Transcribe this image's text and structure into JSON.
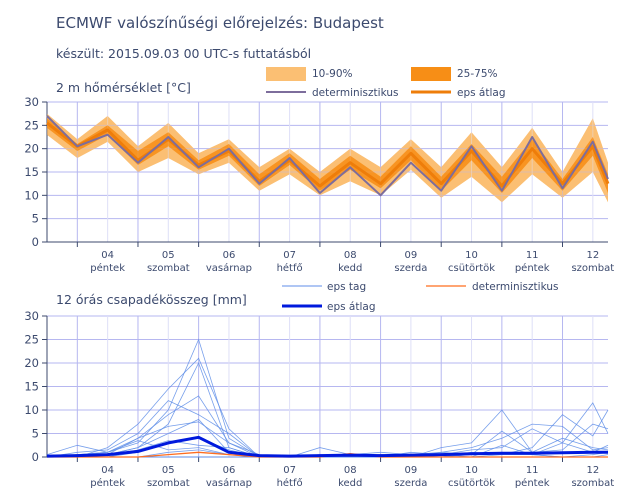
{
  "header": {
    "title": "ECMWF valószínűségi előrejelzés: Budapest",
    "subtitle": "készült: 2015.09.03 00 UTC-s futtatásból"
  },
  "colors": {
    "band_10_90": "#fbbf73",
    "band_25_75": "#f78e16",
    "deterministic_temp": "#7d6d9c",
    "eps_mean_temp": "#ee7d0a",
    "eps_members": "#5f8ee8",
    "deterministic_precip": "#ff6d1f",
    "eps_mean_precip": "#0019dd",
    "grid_major": "#b6b7f0",
    "grid_minor": "#dedff7",
    "axis": "#3c4a6e"
  },
  "x_axis": {
    "day_numbers": [
      "04",
      "05",
      "06",
      "07",
      "08",
      "09",
      "10",
      "11",
      "12"
    ],
    "day_names": [
      "péntek",
      "szombat",
      "vasárnap",
      "hétfő",
      "kedd",
      "szerda",
      "csütörtök",
      "péntek",
      "szombat"
    ],
    "range": [
      0,
      18.5
    ]
  },
  "chart_data": [
    {
      "type": "area",
      "title": "2 m hőmérséklet [°C]",
      "ylim": [
        0,
        30
      ],
      "yticks": [
        0,
        5,
        10,
        15,
        20,
        25,
        30
      ],
      "grid": true,
      "legend_placement": "top-right",
      "legend": {
        "band_10_90": "10-90%",
        "band_25_75": "25-75%",
        "deterministic": "determinisztikus",
        "eps_mean": "eps átlag"
      },
      "x": [
        0,
        1,
        2,
        3,
        4,
        5,
        6,
        7,
        8,
        9,
        10,
        11,
        12,
        13,
        14,
        15,
        16,
        17,
        18,
        18.5
      ],
      "p10": [
        23,
        18,
        21.5,
        15,
        18,
        14.5,
        17,
        11,
        14.5,
        10,
        13,
        10,
        15.5,
        9.5,
        14,
        8.5,
        14.5,
        9.5,
        15,
        8.5
      ],
      "p90": [
        27.5,
        22,
        27,
        20.5,
        25.5,
        19,
        22,
        16,
        20,
        15,
        20,
        16,
        22,
        16,
        23.5,
        16,
        24.5,
        15,
        26.5,
        17
      ],
      "p25": [
        24.5,
        19.5,
        23,
        16.5,
        20.5,
        15.5,
        18.5,
        12,
        16.5,
        11,
        15.5,
        11.5,
        17.5,
        11,
        17.5,
        10.5,
        18,
        11,
        18.5,
        10.5
      ],
      "p75": [
        26.5,
        21,
        25,
        19.5,
        23.5,
        17.5,
        21,
        14.5,
        19,
        13.5,
        18.5,
        14,
        20.5,
        14,
        21,
        14,
        22,
        13.5,
        22.5,
        14.5
      ],
      "deterministic": [
        27,
        20.5,
        23,
        17,
        22.5,
        16,
        20,
        12.5,
        18,
        10.5,
        16,
        10,
        17,
        11,
        20.5,
        11,
        22.5,
        11.5,
        21.5,
        13.5
      ],
      "eps_mean": [
        25.5,
        20.5,
        24,
        17.5,
        22,
        16.5,
        19.5,
        13,
        17.5,
        12,
        17,
        12.5,
        19,
        12.5,
        19.5,
        12,
        20,
        12.5,
        20.5,
        12.5
      ]
    },
    {
      "type": "line",
      "title": "12 órás csapadékösszeg [mm]",
      "ylim": [
        0,
        30
      ],
      "yticks": [
        0,
        5,
        10,
        15,
        20,
        25,
        30
      ],
      "grid": true,
      "legend_placement": "top-right",
      "legend": {
        "eps_members": "eps tag",
        "deterministic": "determinisztikus",
        "eps_mean": "eps átlag"
      },
      "x": [
        0,
        1,
        2,
        3,
        4,
        5,
        6,
        7,
        8,
        9,
        10,
        11,
        12,
        13,
        14,
        15,
        16,
        17,
        18,
        18.5
      ],
      "eps_mean": [
        0.2,
        0.3,
        0.5,
        1.2,
        3,
        4.2,
        1,
        0.3,
        0.2,
        0.3,
        0.4,
        0.3,
        0.4,
        0.5,
        0.7,
        0.8,
        0.8,
        0.9,
        1,
        1
      ],
      "deterministic": [
        0,
        0,
        0,
        0,
        0.5,
        1,
        0.5,
        0,
        0,
        0,
        0.7,
        0,
        0,
        0,
        0,
        0,
        0,
        0,
        0,
        0
      ],
      "eps_members": [
        [
          0,
          0.5,
          1,
          3,
          10,
          25,
          4,
          0,
          0,
          0,
          0,
          0,
          0,
          0,
          0.5,
          1,
          0.5,
          0,
          0.5,
          1
        ],
        [
          0,
          0.3,
          0.5,
          2,
          7,
          20,
          2,
          0,
          0,
          0,
          0,
          0,
          0,
          0,
          1,
          0.5,
          0.5,
          0,
          0,
          0.5
        ],
        [
          0,
          0,
          2,
          7,
          14.5,
          21,
          6,
          0,
          0,
          0,
          0,
          0,
          0,
          0,
          0,
          0,
          0,
          0,
          0,
          0
        ],
        [
          0,
          0,
          0.5,
          4,
          9,
          13,
          3,
          0.5,
          0,
          0,
          0,
          0,
          0,
          0,
          0,
          0,
          0,
          0,
          0,
          0
        ],
        [
          0,
          1,
          1.5,
          5,
          12,
          9,
          5,
          0,
          0,
          0,
          0,
          0,
          1,
          0.5,
          0,
          0,
          0,
          0,
          0,
          0
        ],
        [
          0,
          0.5,
          1,
          4,
          6.5,
          7.5,
          3,
          0,
          0,
          0,
          0,
          0,
          0,
          0,
          0,
          0,
          0,
          0,
          0,
          0
        ],
        [
          0,
          0,
          0.5,
          2,
          5,
          8,
          1,
          0,
          0,
          0,
          0,
          0,
          0,
          0,
          0,
          0,
          0,
          0,
          0,
          0
        ],
        [
          0,
          0,
          0,
          1,
          3,
          4,
          1.5,
          0,
          0,
          0,
          0,
          0,
          0,
          0,
          0,
          0,
          0,
          0,
          0,
          0
        ],
        [
          0.5,
          2.5,
          1,
          3.5,
          1.5,
          2,
          0.5,
          0,
          0,
          0,
          0,
          0,
          0,
          0,
          0,
          0,
          0,
          0,
          0,
          0
        ],
        [
          0,
          0,
          0,
          1.5,
          3.5,
          2.5,
          2,
          0,
          0,
          0,
          0,
          0,
          0,
          0,
          0,
          0,
          0,
          0,
          0,
          0
        ],
        [
          0,
          0,
          0,
          0,
          1,
          1.5,
          0.5,
          0,
          0,
          0.5,
          0,
          0,
          0,
          0,
          0,
          0,
          0,
          0,
          0,
          0
        ],
        [
          0,
          0,
          0,
          0,
          0,
          0,
          0,
          0,
          0,
          2,
          0.5,
          0,
          0,
          0,
          0,
          0,
          0,
          0,
          0,
          0
        ],
        [
          0,
          0,
          0,
          0,
          0,
          0,
          0,
          0,
          0,
          0,
          0,
          0,
          0,
          2,
          3,
          10,
          1,
          4,
          2,
          1.5
        ],
        [
          0,
          0,
          0,
          0,
          0,
          0,
          0,
          0,
          0,
          0,
          0,
          0,
          0,
          1,
          2,
          4,
          7,
          6.5,
          1.5,
          2
        ],
        [
          0,
          0,
          0,
          0,
          0,
          0,
          0,
          0,
          0,
          0,
          0,
          0.5,
          0,
          0.5,
          1.5,
          2,
          6,
          3,
          11.5,
          5
        ],
        [
          0,
          0,
          0,
          0,
          0,
          0,
          0,
          0,
          0,
          0,
          0,
          0,
          0.5,
          0,
          0,
          0.5,
          2,
          9,
          4.5,
          10
        ],
        [
          0,
          0,
          0,
          0,
          0,
          0,
          0,
          0,
          0,
          0,
          0.5,
          1,
          0.5,
          1,
          0.5,
          5.5,
          1,
          1.5,
          7,
          6
        ],
        [
          0,
          0,
          0,
          0,
          0,
          0,
          0,
          0,
          0,
          0,
          0,
          0,
          0,
          0,
          0,
          2.5,
          0.5,
          3,
          1,
          2.5
        ]
      ]
    }
  ]
}
